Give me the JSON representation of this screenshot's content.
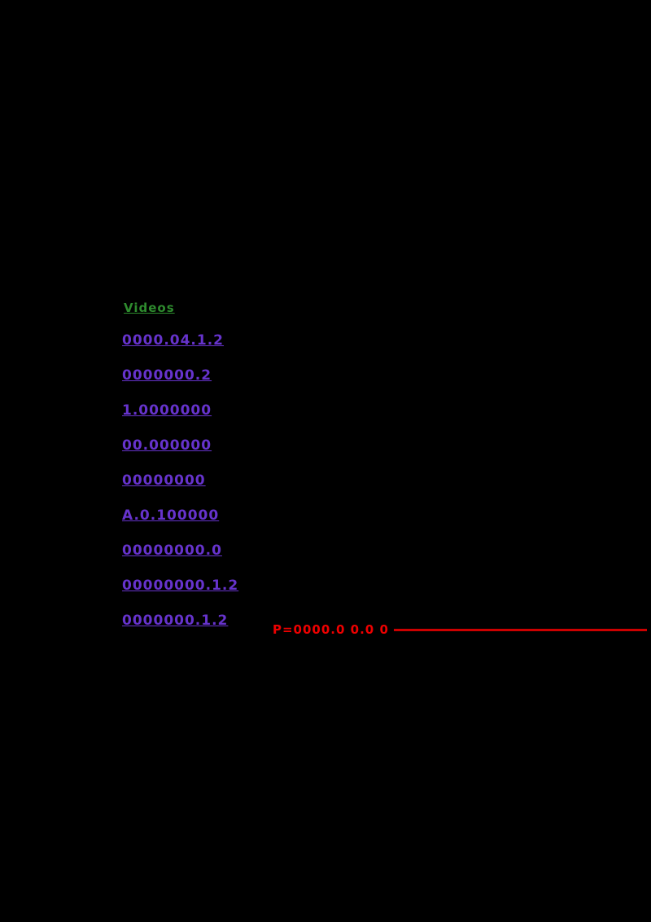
{
  "page": {
    "background_color": "#000000",
    "heading": {
      "label": "Videos",
      "color": "#2e8b2e"
    },
    "links": [
      {
        "label": "0000.04.1.2"
      },
      {
        "label": "0000000.2"
      },
      {
        "label": "1.0000000"
      },
      {
        "label": "00.000000"
      },
      {
        "label": "00000000"
      },
      {
        "label": "A.0.100000"
      },
      {
        "label": "00000000.0"
      },
      {
        "label": "00000000.1.2"
      },
      {
        "label": "0000000.1.2"
      }
    ],
    "link_color": "#6633cc",
    "annotation": {
      "label": "P=0000.0 0.0 0",
      "color": "#ee0000"
    }
  }
}
